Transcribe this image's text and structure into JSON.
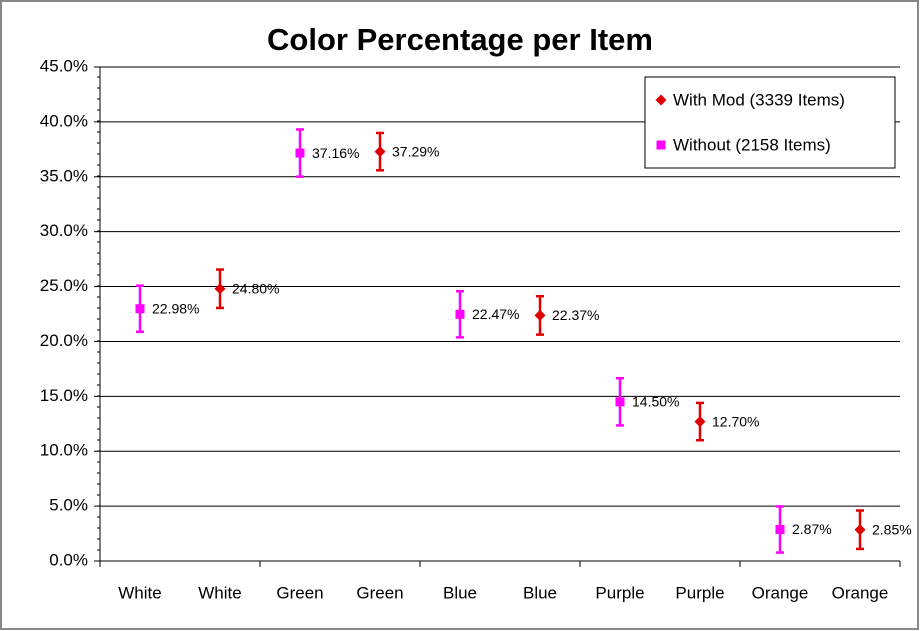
{
  "chart_data": {
    "type": "errorbar",
    "title": "Color Percentage per Item",
    "categories": [
      "White",
      "White",
      "Green",
      "Green",
      "Blue",
      "Blue",
      "Purple",
      "Purple",
      "Orange",
      "Orange"
    ],
    "series": [
      {
        "name": "With Mod (3339 Items)",
        "color": "#e00000",
        "marker": "diamond",
        "values": [
          null,
          24.8,
          null,
          37.29,
          null,
          22.37,
          null,
          12.7,
          null,
          2.85
        ],
        "value_labels": [
          null,
          "24.80%",
          null,
          "37.29%",
          null,
          "22.37%",
          null,
          "12.70%",
          null,
          "2.85%"
        ],
        "errors": [
          null,
          1.75,
          null,
          1.7,
          null,
          1.75,
          null,
          1.7,
          null,
          1.75
        ]
      },
      {
        "name": "Without (2158 Items)",
        "color": "#ff00ff",
        "marker": "square",
        "values": [
          22.98,
          null,
          37.16,
          null,
          22.47,
          null,
          14.5,
          null,
          2.87,
          null
        ],
        "value_labels": [
          "22.98%",
          null,
          "37.16%",
          null,
          "22.47%",
          null,
          "14.50%",
          null,
          "2.87%",
          null
        ],
        "errors": [
          2.1,
          null,
          2.15,
          null,
          2.1,
          null,
          2.15,
          null,
          2.1,
          null
        ]
      }
    ],
    "ylim": [
      0,
      45
    ],
    "yticks": [
      {
        "value": 0,
        "label": "0.0%"
      },
      {
        "value": 5,
        "label": "5.0%"
      },
      {
        "value": 10,
        "label": "10.0%"
      },
      {
        "value": 15,
        "label": "15.0%"
      },
      {
        "value": 20,
        "label": "20.0%"
      },
      {
        "value": 25,
        "label": "25.0%"
      },
      {
        "value": 30,
        "label": "30.0%"
      },
      {
        "value": 35,
        "label": "35.0%"
      },
      {
        "value": 40,
        "label": "40.0%"
      },
      {
        "value": 45,
        "label": "45.0%"
      }
    ],
    "grid": true,
    "legend": "top-right"
  }
}
